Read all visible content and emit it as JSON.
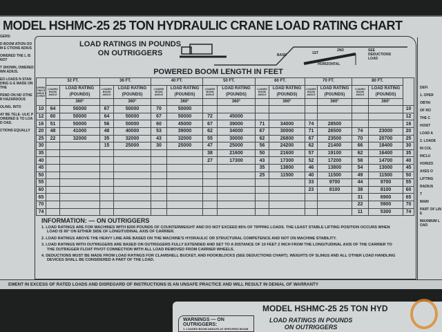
{
  "title": "MODEL HSHMC-25 25 TON HYDRAULIC CRANE LOAD RATING CHART",
  "header_left": "LOAD RATINGS IN POUNDS",
  "header_left2": "ON OUTRIGGERS",
  "boom_figure": {
    "base": "BASE",
    "first": "1ST",
    "second": "2ND",
    "horizontal": "HORIZONTAL",
    "see": "SEE DEDUCTIONS LOAD"
  },
  "powered_boom": "POWERED BOOM LENGTH IN FEET",
  "radius_label": "OPERATING RADIUS IN FEET",
  "angle_label": "LOADED BOOM ANGLE",
  "load_label": "LOAD RATING (POUNDS)",
  "deg": "360°",
  "booms": [
    "32 FT.",
    "36 FT.",
    "40 FT.",
    "50 FT.",
    "60 FT.",
    "70 FT.",
    "80 FT."
  ],
  "rows": [
    {
      "r": "10",
      "c": [
        [
          "64",
          "50000"
        ],
        [
          "67",
          "50000"
        ],
        [
          "70",
          "50000"
        ],
        null,
        null,
        null,
        null
      ]
    },
    {
      "r": "12",
      "c": [
        [
          "60",
          "50000"
        ],
        [
          "64",
          "50000"
        ],
        [
          "67",
          "50000"
        ],
        [
          "72",
          "45000"
        ],
        null,
        null,
        null
      ]
    },
    {
      "r": "16",
      "c": [
        [
          "51",
          "50000"
        ],
        [
          "56",
          "50000"
        ],
        [
          "60",
          "45000"
        ],
        [
          "67",
          "39000"
        ],
        [
          "71",
          "34000"
        ],
        [
          "74",
          "28500"
        ],
        null
      ]
    },
    {
      "r": "20",
      "c": [
        [
          "48",
          "41000"
        ],
        [
          "48",
          "40000"
        ],
        [
          "53",
          "39000"
        ],
        [
          "62",
          "34000"
        ],
        [
          "67",
          "30000"
        ],
        [
          "71",
          "26500"
        ],
        [
          "74",
          "23000"
        ]
      ]
    },
    {
      "r": "25",
      "c": [
        [
          "22",
          "32000"
        ],
        [
          "35",
          "32000"
        ],
        [
          "43",
          "32000"
        ],
        [
          "55",
          "30000"
        ],
        [
          "62",
          "26800"
        ],
        [
          "67",
          "23500"
        ],
        [
          "70",
          "20700"
        ]
      ]
    },
    {
      "r": "30",
      "c": [
        null,
        [
          "15",
          "25000"
        ],
        [
          "30",
          "25000"
        ],
        [
          "47",
          "25000"
        ],
        [
          "56",
          "24200"
        ],
        [
          "62",
          "21400"
        ],
        [
          "66",
          "18400"
        ]
      ]
    },
    {
      "r": "35",
      "c": [
        null,
        null,
        null,
        [
          "38",
          "21600"
        ],
        [
          "50",
          "21600"
        ],
        [
          "57",
          "19100"
        ],
        [
          "62",
          "16400"
        ]
      ]
    },
    {
      "r": "40",
      "c": [
        null,
        null,
        null,
        [
          "27",
          "17300"
        ],
        [
          "43",
          "17300"
        ],
        [
          "52",
          "17200"
        ],
        [
          "58",
          "14700"
        ]
      ]
    },
    {
      "r": "45",
      "c": [
        null,
        null,
        null,
        null,
        [
          "35",
          "13800"
        ],
        [
          "46",
          "13800"
        ],
        [
          "54",
          "13000"
        ]
      ]
    },
    {
      "r": "50",
      "c": [
        null,
        null,
        null,
        null,
        [
          "25",
          "11500"
        ],
        [
          "40",
          "11500"
        ],
        [
          "49",
          "11500"
        ]
      ]
    },
    {
      "r": "55",
      "c": [
        null,
        null,
        null,
        null,
        null,
        [
          "33",
          "9700"
        ],
        [
          "44",
          "9700"
        ]
      ]
    },
    {
      "r": "60",
      "c": [
        null,
        null,
        null,
        null,
        null,
        [
          "23",
          "8100"
        ],
        [
          "38",
          "8100"
        ]
      ]
    },
    {
      "r": "65",
      "c": [
        null,
        null,
        null,
        null,
        null,
        null,
        [
          "31",
          "6900"
        ]
      ]
    },
    {
      "r": "70",
      "c": [
        null,
        null,
        null,
        null,
        null,
        null,
        [
          "22",
          "5900"
        ]
      ]
    },
    {
      "r": "74",
      "c": [
        null,
        null,
        null,
        null,
        null,
        null,
        [
          "11",
          "5300"
        ]
      ]
    }
  ],
  "left_notes": [
    "GERS:",
    "D BOOM ATION OOM E CTIONS ADIUS",
    "OWERED THE L IS NOT",
    "T SHOWN, OWERED WN ADIUS.",
    "ED LOADS N STANDING G E MADE ON THE",
    "PEND ON ND OTHER HAZARDOUS",
    "OLING. INTO",
    "AY BE TELE- ULIC POWERED E TO LOAD OAD.",
    "CTIONS EQUALLY"
  ],
  "info": {
    "heading": "INFORMATION: — ON OUTRIGGERS",
    "items": [
      "1. LOAD RATINGS ARE FOR MACHINES WITH 8200 POUNDS OF COUNTERWEIGHT AND DO NOT EXCEED 85% OF TIPPING LOADS. THE LEAST STABLE LIFTING POSITION OCCURS WHEN LOAD IS 90° ON EITHER SIDE OF LONGITUDINAL AXIS OF CARRIER.",
      "2. LOAD RATINGS ABOVE THE HEAVY LINE ARE BASED ON THE MACHINE'S HYDRAULIC OR STRUCTURAL COMPETENCE AND NOT ON MACHINE STABILITY.",
      "3. LOAD RATINGS WITH OUTRIGGERS ARE BASED ON OUTRIGGERS FULLY EXTENDED AND SET TO A DISTANCE OF 10 FEET 2 INCH FROM THE LONGITUDINAL AXIS OF THE CARRIER TO THE OUTRIGGER FLOAT PIVOT CONNECTION WITH ALL LOAD REMOVED FROM CARRIER WHEELS.",
      "4. DEDUCTIONS MUST BE MADE FROM LOAD RATINGS FOR CLAMSHELL BUCKET, AND HOOKBLOCKS (SEE DEDUCTIONS CHART). WEIGHTS OF SLINGS AND ALL OTHER LOAD HANDLING DEVICES SHALL BE CONSIDERED A PART OF THE LOAD."
    ]
  },
  "right_panel": [
    "DEFI",
    "1. OPER",
    "OBTAI",
    "OF RO",
    "THE C",
    "HOIST",
    "LOAD A",
    "2. LOADE",
    "IN COL",
    "INCLU",
    "HORIZO",
    "AXES O",
    "LIFTING",
    "RADIUS",
    "T",
    "MAIN",
    "PART OF LINE",
    "MAXIMUM LOAD"
  ],
  "warning": "EMENT IN EXCESS OF RATED LOADS AND DISREGARD OF INSTRUCTIONS IS AN UNSAFE PRACTICE AND WILL RESULT IN DENIAL OF WARRANTY",
  "lower_plate": {
    "title": "MODEL HSHMC-25 25 TON HYD",
    "warnings": "WARNINGS — ON OUTRIGGERS:",
    "warn1": "1. LOADED BOOM ANGLES AT SPECIFIED BOOM",
    "load": "LOAD RATINGS IN POUNDS",
    "load2": "ON OUTRIGGERS"
  }
}
